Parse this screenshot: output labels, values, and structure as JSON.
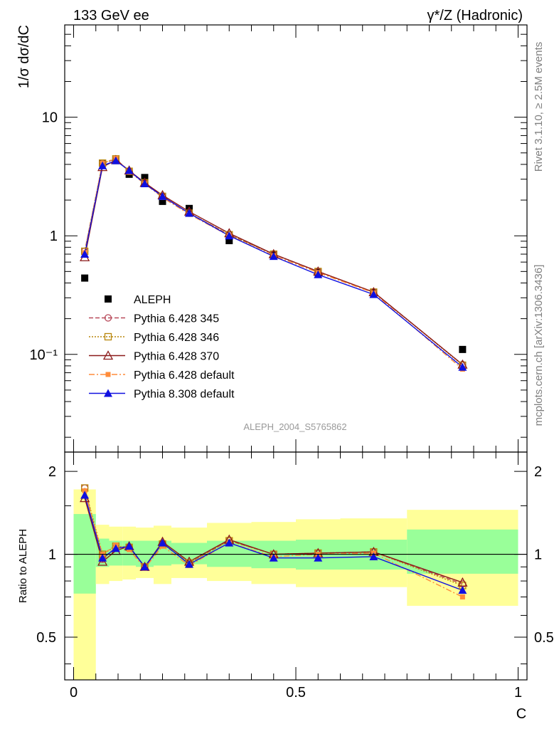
{
  "header": {
    "left": "133 GeV ee",
    "right": "γ*/Z (Hadronic)"
  },
  "side_text": {
    "rivet": "Rivet 3.1.10, ≥ 2.5M events",
    "mcplots": "mcplots.cern.ch [arXiv:1306.3436]"
  },
  "analysis_id": "ALEPH_2004_S5765862",
  "chart_data": [
    {
      "type": "scatter",
      "panel": "main",
      "ylabel": "1/σ  dσ/dC",
      "xlim": [
        -0.02,
        1.02
      ],
      "ylim": [
        0.015,
        60
      ],
      "yscale": "log",
      "ytick_labels": [
        "10",
        "1",
        "10⁻¹"
      ],
      "legend_placement": "lower-left",
      "x": [
        0.025,
        0.065,
        0.095,
        0.125,
        0.16,
        0.2,
        0.26,
        0.35,
        0.45,
        0.55,
        0.675,
        0.875
      ],
      "series": [
        {
          "name": "ALEPH",
          "color": "#000000",
          "marker": "filled-square",
          "line": "none",
          "values": [
            0.44,
            4.1,
            4.3,
            3.3,
            3.1,
            1.95,
            1.7,
            0.91,
            0.69,
            0.49,
            0.33,
            0.11
          ]
        },
        {
          "name": "Pythia 6.428 345",
          "color": "#b84a5a",
          "marker": "open-circle",
          "line": "dashed",
          "values": [
            0.74,
            4.05,
            4.45,
            3.5,
            2.8,
            2.15,
            1.55,
            1.02,
            0.7,
            0.5,
            0.335,
            0.082
          ]
        },
        {
          "name": "Pythia 6.428 346",
          "color": "#b8860b",
          "marker": "open-square",
          "line": "dotted",
          "values": [
            0.74,
            4.1,
            4.45,
            3.5,
            2.8,
            2.15,
            1.55,
            1.02,
            0.7,
            0.5,
            0.335,
            0.081
          ]
        },
        {
          "name": "Pythia 6.428 370",
          "color": "#8b1a1a",
          "marker": "open-triangle",
          "line": "solid",
          "values": [
            0.66,
            3.8,
            4.35,
            3.55,
            2.8,
            2.2,
            1.6,
            1.05,
            0.7,
            0.5,
            0.335,
            0.082
          ]
        },
        {
          "name": "Pythia 6.428 default",
          "color": "#ff8c3a",
          "marker": "filled-square-small",
          "line": "dashdot",
          "values": [
            0.72,
            4.1,
            4.5,
            3.45,
            2.75,
            2.1,
            1.52,
            1.0,
            0.68,
            0.49,
            0.33,
            0.075
          ]
        },
        {
          "name": "Pythia 8.308 default",
          "color": "#1010e0",
          "marker": "filled-triangle",
          "line": "solid",
          "values": [
            0.7,
            3.9,
            4.3,
            3.55,
            2.75,
            2.15,
            1.55,
            1.0,
            0.67,
            0.47,
            0.32,
            0.078
          ]
        }
      ]
    },
    {
      "type": "line",
      "panel": "ratio",
      "ylabel": "Ratio to ALEPH",
      "xlabel": "C",
      "xlim": [
        -0.02,
        1.02
      ],
      "ylim": [
        0.35,
        2.35
      ],
      "yscale": "log",
      "yticks": [
        0.5,
        1,
        2
      ],
      "ytick_labels": [
        "0.5",
        "1",
        "2"
      ],
      "xticks": [
        0,
        0.5,
        1
      ],
      "xtick_labels": [
        "0",
        "0.5",
        "1"
      ],
      "bands": {
        "edges": [
          0.0,
          0.05,
          0.08,
          0.11,
          0.14,
          0.18,
          0.22,
          0.3,
          0.4,
          0.5,
          0.6,
          0.75,
          1.0
        ],
        "inner_color": "#99ff99",
        "outer_color": "#ffff99",
        "inner": [
          [
            0.72,
            1.4
          ],
          [
            0.9,
            1.14
          ],
          [
            0.91,
            1.12
          ],
          [
            0.91,
            1.12
          ],
          [
            0.9,
            1.12
          ],
          [
            0.91,
            1.12
          ],
          [
            0.92,
            1.1
          ],
          [
            0.9,
            1.12
          ],
          [
            0.89,
            1.12
          ],
          [
            0.88,
            1.13
          ],
          [
            0.88,
            1.13
          ],
          [
            0.85,
            1.23
          ]
        ],
        "outer": [
          [
            0.3,
            1.72
          ],
          [
            0.78,
            1.28
          ],
          [
            0.8,
            1.26
          ],
          [
            0.81,
            1.26
          ],
          [
            0.82,
            1.25
          ],
          [
            0.78,
            1.27
          ],
          [
            0.82,
            1.25
          ],
          [
            0.8,
            1.3
          ],
          [
            0.78,
            1.31
          ],
          [
            0.76,
            1.34
          ],
          [
            0.76,
            1.35
          ],
          [
            0.65,
            1.45
          ]
        ]
      },
      "x": [
        0.025,
        0.065,
        0.095,
        0.125,
        0.16,
        0.2,
        0.26,
        0.35,
        0.45,
        0.55,
        0.675,
        0.875
      ],
      "series": [
        {
          "name": "Pythia 6.428 345",
          "color": "#b84a5a",
          "marker": "open-circle",
          "line": "dashed",
          "values": [
            1.74,
            0.96,
            1.06,
            1.06,
            0.9,
            1.09,
            0.93,
            1.12,
            1.0,
            1.01,
            1.02,
            0.78
          ]
        },
        {
          "name": "Pythia 6.428 346",
          "color": "#b8860b",
          "marker": "open-square",
          "line": "dotted",
          "values": [
            1.74,
            1.0,
            1.07,
            1.06,
            0.9,
            1.09,
            0.93,
            1.12,
            1.0,
            1.01,
            1.02,
            0.77
          ]
        },
        {
          "name": "Pythia 6.428 370",
          "color": "#8b1a1a",
          "marker": "open-triangle",
          "line": "solid",
          "values": [
            1.6,
            0.94,
            1.03,
            1.07,
            0.9,
            1.11,
            0.94,
            1.13,
            1.0,
            1.01,
            1.02,
            0.79
          ]
        },
        {
          "name": "Pythia 6.428 default",
          "color": "#ff8c3a",
          "marker": "filled-square-small",
          "line": "dashdot",
          "values": [
            1.7,
            1.0,
            1.08,
            1.04,
            0.89,
            1.07,
            0.91,
            1.1,
            0.98,
            1.0,
            1.01,
            0.7
          ]
        },
        {
          "name": "Pythia 8.308 default",
          "color": "#1010e0",
          "marker": "filled-triangle",
          "line": "solid",
          "values": [
            1.64,
            0.97,
            1.05,
            1.07,
            0.9,
            1.1,
            0.92,
            1.1,
            0.97,
            0.97,
            0.98,
            0.74
          ]
        }
      ]
    }
  ]
}
